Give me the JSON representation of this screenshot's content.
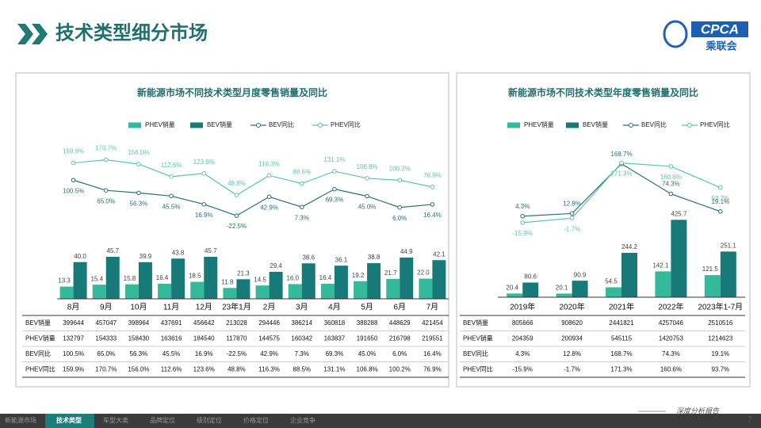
{
  "header": {
    "title": "技术类型细分市场",
    "logo": {
      "text": "CPCA",
      "subtext": "乘联会"
    }
  },
  "chart_data": [
    {
      "type": "combo",
      "title": "新能源市场不同技术类型月度零售销量及同比",
      "categories": [
        "8月",
        "9月",
        "10月",
        "11月",
        "12月",
        "23年1月",
        "2月",
        "3月",
        "4月",
        "5月",
        "6月",
        "7月"
      ],
      "ylim": [
        0,
        170
      ],
      "y2lim": [
        -310,
        230
      ],
      "series": [
        {
          "name": "PHEV销量",
          "type": "bar",
          "color": "#35b99b",
          "values": [
            13.3,
            15.4,
            15.8,
            16.4,
            18.5,
            11.8,
            14.5,
            16.0,
            16.4,
            19.2,
            21.7,
            22.0
          ],
          "value_labels": [
            "13.3",
            "15.4",
            "15.8",
            "16.4",
            "18.5",
            "11.8",
            "14.5",
            "16.0",
            "16.4",
            "19.2",
            "21.7",
            "22.0"
          ]
        },
        {
          "name": "BEV销量",
          "type": "bar",
          "color": "#177a78",
          "values": [
            40.0,
            45.7,
            39.9,
            43.8,
            45.7,
            21.3,
            29.4,
            38.6,
            36.1,
            38.8,
            44.9,
            42.1
          ],
          "value_labels": [
            "40.0",
            "45.7",
            "39.9",
            "43.8",
            "45.7",
            "21.3",
            "29.4",
            "38.6",
            "36.1",
            "38.8",
            "44.9",
            "42.1"
          ]
        },
        {
          "name": "BEV同比",
          "type": "line",
          "axis": "y2",
          "color": "#2a6f78",
          "values": [
            100.5,
            65.0,
            56.3,
            45.5,
            16.9,
            -22.5,
            42.9,
            7.3,
            69.3,
            45.0,
            6.0,
            16.4
          ],
          "value_labels": [
            "100.5%",
            "65.0%",
            "56.3%",
            "45.5%",
            "16.9%",
            "-22.5%",
            "42.9%",
            "7.3%",
            "69.3%",
            "45.0%",
            "6.0%",
            "16.4%"
          ]
        },
        {
          "name": "PHEV同比",
          "type": "line",
          "axis": "y2",
          "color": "#5cc3ae",
          "values": [
            159.9,
            170.7,
            156.0,
            112.6,
            123.6,
            48.8,
            116.3,
            88.5,
            131.1,
            106.8,
            100.2,
            76.9
          ],
          "value_labels": [
            "159.9%",
            "170.7%",
            "156.0%",
            "112.6%",
            "123.6%",
            "48.8%",
            "116.3%",
            "88.5%",
            "131.1%",
            "106.8%",
            "100.2%",
            "76.9%"
          ]
        }
      ]
    },
    {
      "type": "combo",
      "title": "新能源市场不同技术类型年度零售销量及同比",
      "categories": [
        "2019年",
        "2020年",
        "2021年",
        "2022年",
        "2023年1-7月"
      ],
      "ylim": [
        0,
        850
      ],
      "y2lim": [
        -250,
        235
      ],
      "series": [
        {
          "name": "PHEV销量",
          "type": "bar",
          "color": "#35b99b",
          "values": [
            20.4,
            20.1,
            54.5,
            142.1,
            121.5
          ]
        },
        {
          "name": "BEV销量",
          "type": "bar",
          "color": "#177a78",
          "values": [
            80.6,
            90.9,
            244.2,
            425.7,
            251.1
          ]
        },
        {
          "name": "BEV同比",
          "type": "line",
          "axis": "y2",
          "color": "#2a6f78",
          "values": [
            4.3,
            12.8,
            168.7,
            74.3,
            19.1
          ],
          "value_labels": [
            "4.3%",
            "12.8%",
            "168.7%",
            "74.3%",
            "19.1%"
          ]
        },
        {
          "name": "PHEV同比",
          "type": "line",
          "axis": "y2",
          "color": "#5cc3ae",
          "values": [
            -15.9,
            -1.7,
            171.3,
            160.6,
            93.7
          ],
          "value_labels": [
            "-15.9%",
            "-1.7%",
            "171.3%",
            "160.6%",
            "93.7%"
          ]
        }
      ]
    }
  ],
  "tables": [
    {
      "rows": [
        {
          "label": "BEV销量",
          "cells": [
            399644,
            457047,
            398964,
            437691,
            456642,
            213028,
            294446,
            386214,
            360818,
            388288,
            448629,
            421454
          ]
        },
        {
          "label": "PHEV销量",
          "cells": [
            132797,
            154333,
            158430,
            163616,
            184540,
            117870,
            144575,
            160342,
            163837,
            191650,
            216798,
            219551
          ]
        },
        {
          "label": "BEV同比",
          "cells": [
            "100.5%",
            "65.0%",
            "56.3%",
            "45.5%",
            "16.9%",
            "-22.5%",
            "42.9%",
            "7.3%",
            "69.3%",
            "45.0%",
            "6.0%",
            "16.4%"
          ]
        },
        {
          "label": "PHEV同比",
          "cells": [
            "159.9%",
            "170.7%",
            "156.0%",
            "112.6%",
            "123.6%",
            "48.8%",
            "116.3%",
            "88.5%",
            "131.1%",
            "106.8%",
            "100.2%",
            "76.9%"
          ]
        }
      ]
    },
    {
      "rows": [
        {
          "label": "BEV销量",
          "cells": [
            805666,
            908620,
            2441821,
            4257046,
            2510516
          ]
        },
        {
          "label": "PHEV销量",
          "cells": [
            204359,
            200934,
            545115,
            1420753,
            1214623
          ]
        },
        {
          "label": "BEV同比",
          "cells": [
            "4.3%",
            "12.8%",
            "168.7%",
            "74.3%",
            "19.1%"
          ]
        },
        {
          "label": "PHEV同比",
          "cells": [
            "-15.9%",
            "-1.7%",
            "171.3%",
            "160.6%",
            "93.7%"
          ]
        }
      ]
    }
  ],
  "footer": {
    "tabs": [
      "新能源市场",
      "技术类型",
      "车型大类",
      "品牌定位",
      "级别定位",
      "价格定位",
      "企业竞争"
    ],
    "active_tab": 1,
    "report": "深度分析报告",
    "page": 7
  }
}
